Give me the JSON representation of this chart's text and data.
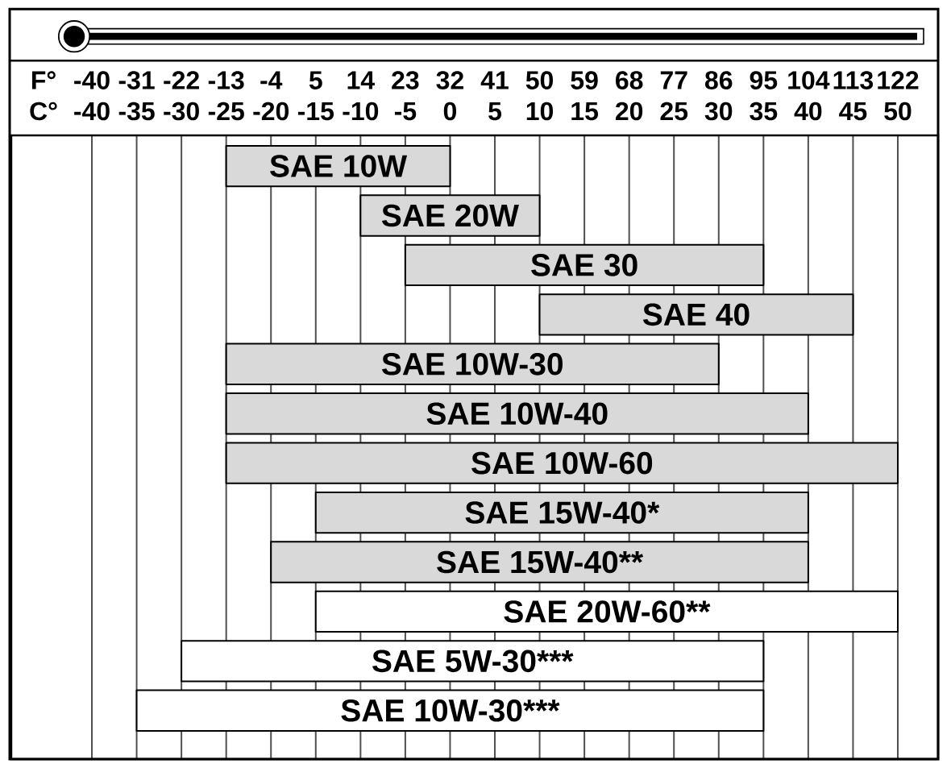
{
  "chart_data": {
    "type": "bar",
    "orientation": "horizontal",
    "categories": [
      "SAE 10W",
      "SAE 20W",
      "SAE 30",
      "SAE 40",
      "SAE 10W-30",
      "SAE 10W-40",
      "SAE 10W-60",
      "SAE 15W-40*",
      "SAE 15W-40**",
      "SAE 20W-60**",
      "SAE 5W-30***",
      "SAE 10W-30***"
    ],
    "base": [
      -25,
      -10,
      -5,
      10,
      -25,
      -25,
      -25,
      -15,
      -20,
      -15,
      -30,
      -35
    ],
    "values": [
      25,
      20,
      40,
      35,
      55,
      65,
      75,
      55,
      60,
      65,
      65,
      70
    ],
    "colors": [
      "#d9d9d9",
      "#d9d9d9",
      "#d9d9d9",
      "#d9d9d9",
      "#d9d9d9",
      "#d9d9d9",
      "#d9d9d9",
      "#d9d9d9",
      "#d9d9d9",
      "#ffffff",
      "#ffffff",
      "#ffffff"
    ],
    "xlabel": "C°",
    "xlim": [
      -49,
      54.5
    ],
    "xticks": [
      -40,
      -35,
      -30,
      -25,
      -20,
      -15,
      -10,
      -5,
      0,
      5,
      10,
      15,
      20,
      25,
      30,
      35,
      40,
      45,
      50
    ],
    "x2label": "F°",
    "x2lim": [
      -56.2,
      130.1
    ],
    "x2ticks": [
      -40,
      -31,
      -22,
      -13,
      -4,
      5,
      14,
      23,
      32,
      41,
      50,
      59,
      68,
      77,
      86,
      95,
      104,
      113,
      122
    ],
    "grid": "x"
  }
}
